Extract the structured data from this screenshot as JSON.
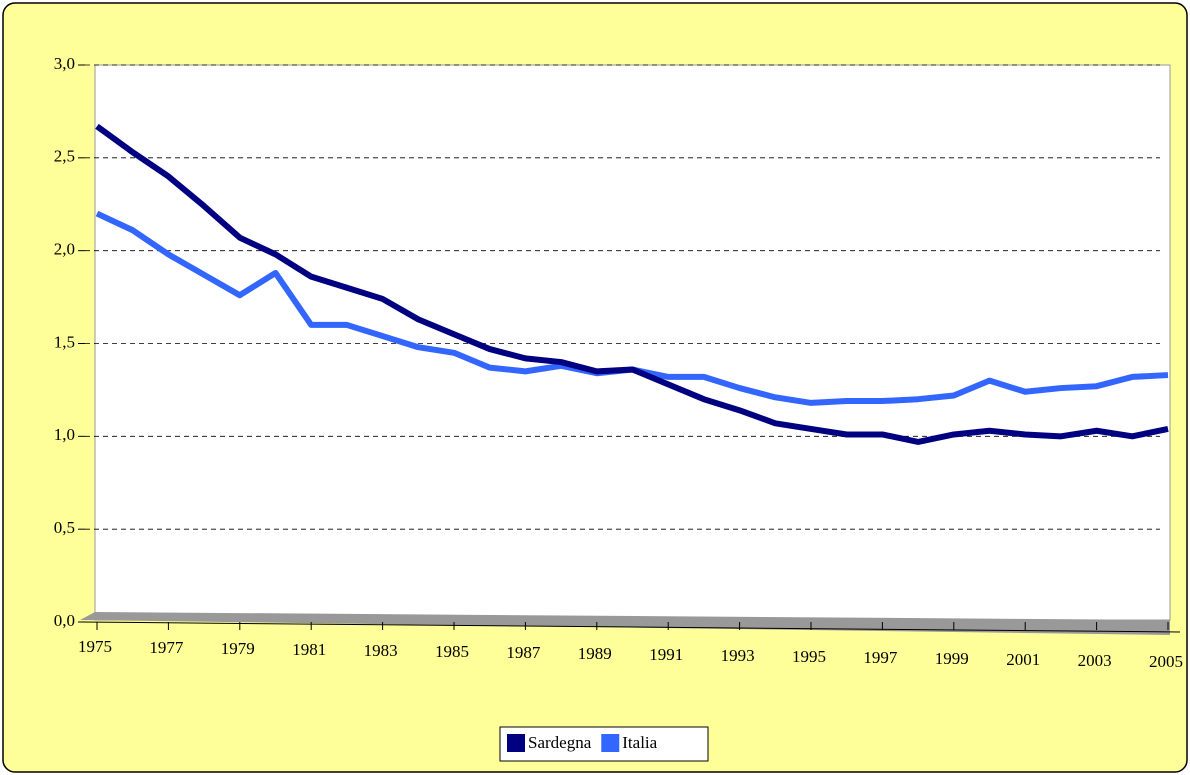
{
  "chart_data": {
    "type": "line",
    "x": [
      1975,
      1976,
      1977,
      1978,
      1979,
      1980,
      1981,
      1982,
      1983,
      1984,
      1985,
      1986,
      1987,
      1988,
      1989,
      1990,
      1991,
      1992,
      1993,
      1994,
      1995,
      1996,
      1997,
      1998,
      1999,
      2000,
      2001,
      2002,
      2003,
      2004,
      2005
    ],
    "series": [
      {
        "name": "Sardegna",
        "color": "#000080",
        "values": [
          2.67,
          2.53,
          2.4,
          2.24,
          2.07,
          1.98,
          1.86,
          1.8,
          1.74,
          1.63,
          1.55,
          1.47,
          1.42,
          1.4,
          1.35,
          1.36,
          1.28,
          1.2,
          1.14,
          1.07,
          1.04,
          1.01,
          1.01,
          0.97,
          1.01,
          1.03,
          1.01,
          1.0,
          1.03,
          1.0,
          1.04
        ]
      },
      {
        "name": "Italia",
        "color": "#3366ff",
        "values": [
          2.2,
          2.11,
          1.98,
          1.87,
          1.76,
          1.88,
          1.6,
          1.6,
          1.54,
          1.48,
          1.45,
          1.37,
          1.35,
          1.38,
          1.34,
          1.36,
          1.32,
          1.32,
          1.26,
          1.21,
          1.18,
          1.19,
          1.19,
          1.2,
          1.22,
          1.3,
          1.24,
          1.26,
          1.27,
          1.32,
          1.33
        ]
      }
    ],
    "xlim": [
      1975,
      2005
    ],
    "xticks": [
      1975,
      1977,
      1979,
      1981,
      1983,
      1985,
      1987,
      1989,
      1991,
      1993,
      1995,
      1997,
      1999,
      2001,
      2003,
      2005
    ],
    "ylim": [
      0,
      3
    ],
    "yticks": [
      {
        "value": 0,
        "label": "0,0"
      },
      {
        "value": 0.5,
        "label": "0,5"
      },
      {
        "value": 1,
        "label": "1,0"
      },
      {
        "value": 1.5,
        "label": "1,5"
      },
      {
        "value": 2,
        "label": "2,0"
      },
      {
        "value": 2.5,
        "label": "2,5"
      },
      {
        "value": 3,
        "label": "3,0"
      }
    ],
    "grid": true,
    "legend": "bottom"
  }
}
